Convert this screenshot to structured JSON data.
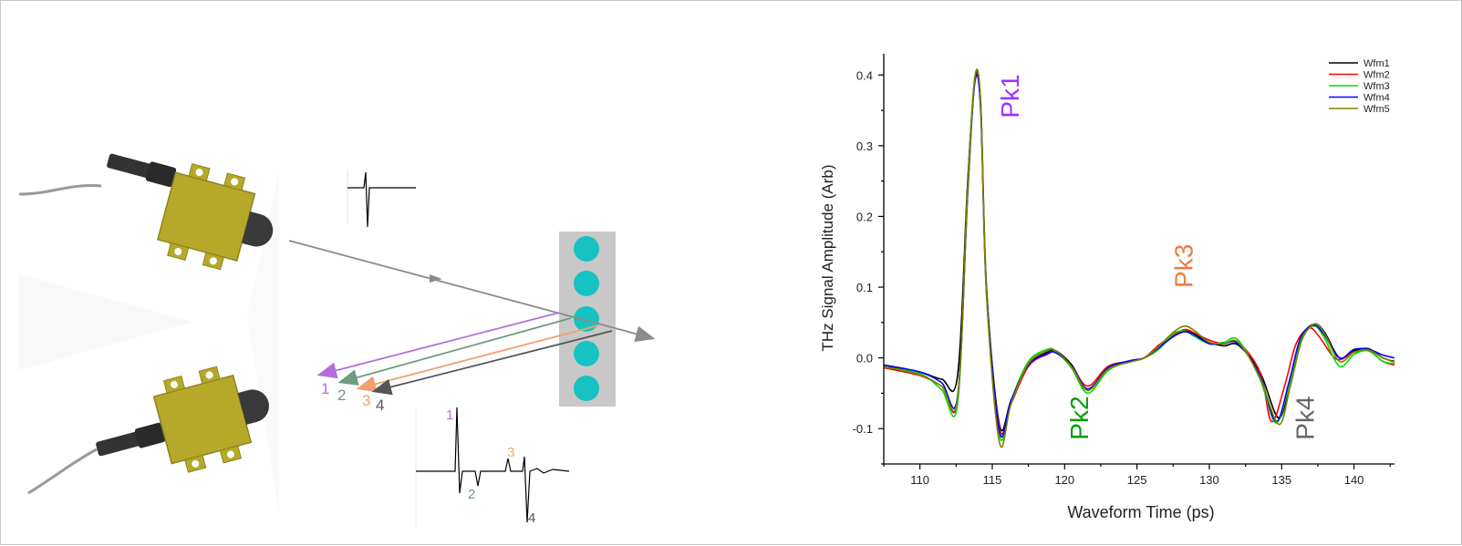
{
  "diagram": {
    "reflection_labels": [
      "1",
      "2",
      "3",
      "4"
    ],
    "reflection_colors": [
      "#b36fd9",
      "#6f9a82",
      "#f0a071",
      "#555555"
    ],
    "ball_color": "#17c2c2",
    "panel_color": "#c8c8c8",
    "emitter_color": "#b6a92a",
    "trace_labels": [
      "1",
      "2",
      "3",
      "4"
    ],
    "trace_label_colors": [
      "#b36fd9",
      "#6f9a82",
      "#e3b36b",
      "#555555"
    ]
  },
  "chart_data": {
    "type": "line",
    "xlabel": "Waveform Time (ps)",
    "ylabel": "THz Signal Amplitude (Arb)",
    "xlim": [
      107.5,
      142.8
    ],
    "ylim": [
      -0.15,
      0.43
    ],
    "xticks": [
      110,
      115,
      120,
      125,
      130,
      135,
      140
    ],
    "xtick_labels": [
      "110",
      "115",
      "120",
      "125",
      "130",
      "135",
      "140"
    ],
    "yticks": [
      -0.1,
      0.0,
      0.1,
      0.2,
      0.3,
      0.4
    ],
    "ytick_labels": [
      "-0.1",
      "0.0",
      "0.1",
      "0.2",
      "0.3",
      "0.4"
    ],
    "legend_position": "top-right",
    "grid": false,
    "series": [
      {
        "name": "Wfm1",
        "color": "#000000",
        "x": [
          107.5,
          110,
          111.5,
          112.6,
          113.3,
          113.8,
          114.2,
          114.6,
          115.5,
          116.3,
          117.5,
          118.8,
          119.4,
          120.5,
          121.6,
          123,
          124.5,
          125.5,
          126.5,
          127.5,
          128.3,
          129,
          130,
          131,
          132,
          133.5,
          134.8,
          135.6,
          136.4,
          137.3,
          138,
          139,
          140,
          141,
          142,
          142.8
        ],
        "y": [
          -0.012,
          -0.02,
          -0.03,
          -0.025,
          0.25,
          0.395,
          0.36,
          0.1,
          -0.095,
          -0.06,
          -0.01,
          0.008,
          0.01,
          -0.01,
          -0.045,
          -0.015,
          -0.005,
          0.0,
          0.015,
          0.03,
          0.038,
          0.033,
          0.022,
          0.017,
          0.018,
          -0.02,
          -0.085,
          -0.03,
          0.03,
          0.048,
          0.035,
          0.0,
          0.01,
          0.013,
          0.0,
          -0.005
        ]
      },
      {
        "name": "Wfm2",
        "color": "#ff0000",
        "x": [
          107.5,
          110,
          111.5,
          112.6,
          113.3,
          113.8,
          114.2,
          114.6,
          115.5,
          116.3,
          117.5,
          118.8,
          119.4,
          120.5,
          121.6,
          123,
          124.5,
          125.5,
          126.5,
          127.5,
          128.3,
          129,
          130,
          131,
          132,
          133.5,
          134.3,
          135.2,
          136,
          136.9,
          137.6,
          138.8,
          140,
          141,
          142,
          142.8
        ],
        "y": [
          -0.014,
          -0.025,
          -0.04,
          -0.06,
          0.24,
          0.39,
          0.355,
          0.09,
          -0.1,
          -0.065,
          -0.012,
          0.005,
          0.008,
          -0.012,
          -0.04,
          -0.012,
          -0.005,
          0.0,
          0.018,
          0.032,
          0.04,
          0.035,
          0.025,
          0.02,
          0.022,
          -0.02,
          -0.09,
          -0.04,
          0.02,
          0.042,
          0.03,
          -0.002,
          0.008,
          0.01,
          -0.005,
          -0.01
        ]
      },
      {
        "name": "Wfm3",
        "color": "#00e000",
        "x": [
          107.5,
          110,
          111.5,
          112.6,
          113.3,
          113.8,
          114.2,
          114.6,
          115.5,
          116.3,
          117.5,
          118.8,
          119.4,
          120.5,
          121.6,
          123,
          124.5,
          125.5,
          126.5,
          127.5,
          128.3,
          129,
          130,
          131,
          132,
          133.5,
          134.6,
          135.5,
          136.3,
          137.2,
          137.9,
          139,
          140,
          141,
          142,
          142.8
        ],
        "y": [
          -0.013,
          -0.022,
          -0.045,
          -0.065,
          0.24,
          0.398,
          0.36,
          0.1,
          -0.11,
          -0.06,
          -0.005,
          0.012,
          0.009,
          -0.015,
          -0.05,
          -0.018,
          -0.005,
          0.0,
          0.012,
          0.034,
          0.038,
          0.03,
          0.02,
          0.022,
          0.025,
          -0.03,
          -0.092,
          -0.04,
          0.025,
          0.045,
          0.03,
          -0.012,
          0.005,
          0.01,
          -0.005,
          -0.008
        ]
      },
      {
        "name": "Wfm4",
        "color": "#0000ff",
        "x": [
          107.5,
          110,
          111.5,
          112.6,
          113.3,
          113.8,
          114.2,
          114.6,
          115.5,
          116.3,
          117.5,
          118.8,
          119.4,
          120.5,
          121.6,
          123,
          124.5,
          125.5,
          126.5,
          127.5,
          128.3,
          129,
          130,
          131,
          132,
          133.5,
          134.6,
          135.5,
          136.3,
          137.2,
          137.9,
          139,
          140,
          141,
          142,
          142.8
        ],
        "y": [
          -0.01,
          -0.02,
          -0.035,
          -0.055,
          0.23,
          0.392,
          0.35,
          0.095,
          -0.105,
          -0.06,
          -0.01,
          0.006,
          0.007,
          -0.012,
          -0.044,
          -0.014,
          -0.004,
          0.0,
          0.014,
          0.03,
          0.037,
          0.032,
          0.02,
          0.02,
          0.02,
          -0.025,
          -0.09,
          -0.035,
          0.028,
          0.046,
          0.034,
          0.0,
          0.012,
          0.012,
          0.004,
          0.0
        ]
      },
      {
        "name": "Wfm5",
        "color": "#808000",
        "x": [
          107.5,
          110,
          111.5,
          112.6,
          113.3,
          113.8,
          114.2,
          114.6,
          115.5,
          116.3,
          117.5,
          118.8,
          119.4,
          120.5,
          121.6,
          123,
          124.5,
          125.5,
          126.5,
          127.5,
          128.3,
          129,
          130,
          131,
          132,
          133.5,
          134.8,
          135.6,
          136.4,
          137.3,
          138,
          139,
          140,
          141,
          142,
          142.8
        ],
        "y": [
          -0.012,
          -0.024,
          -0.04,
          -0.058,
          0.235,
          0.397,
          0.36,
          0.09,
          -0.12,
          -0.065,
          -0.008,
          0.01,
          0.01,
          -0.013,
          -0.046,
          -0.016,
          -0.006,
          0.0,
          0.016,
          0.036,
          0.045,
          0.038,
          0.022,
          0.02,
          0.022,
          -0.028,
          -0.094,
          -0.04,
          0.025,
          0.048,
          0.033,
          -0.005,
          0.008,
          0.011,
          0.0,
          -0.006
        ]
      }
    ],
    "annotations": [
      {
        "text": "Pk1",
        "x": 116.2,
        "y": 0.37,
        "color": "#9b30ff"
      },
      {
        "text": "Pk2",
        "x": 121.0,
        "y": -0.085,
        "color": "#00a000"
      },
      {
        "text": "Pk3",
        "x": 128.2,
        "y": 0.13,
        "color": "#f07a3c"
      },
      {
        "text": "Pk4",
        "x": 136.6,
        "y": -0.085,
        "color": "#666666"
      }
    ]
  }
}
